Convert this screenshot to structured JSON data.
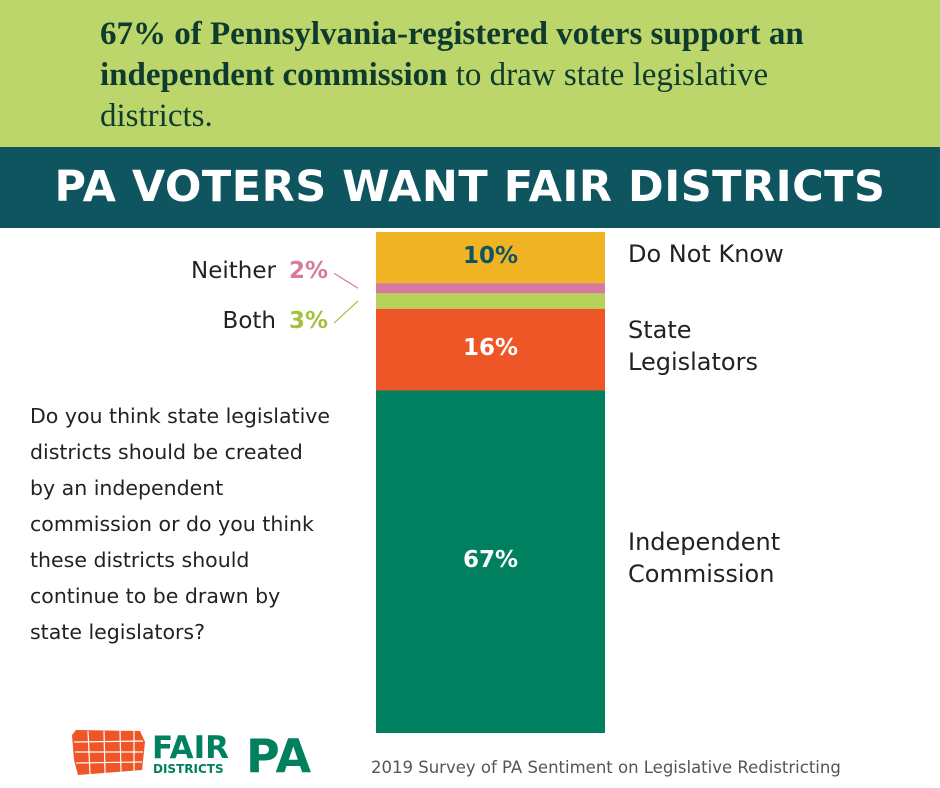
{
  "chart_data": {
    "type": "stacked_bar",
    "headline_bold": "67% of Pennsylvania-registered voters support an independent commission",
    "headline_rest": "to draw state legislative districts.",
    "title": "PA VOTERS WANT FAIR DISTRICTS",
    "question": "Do you think state legislative districts should be created by an independent commission or do you think these districts should continue to be drawn by state legislators?",
    "source": "2019 Survey of PA Sentiment on Legislative Redistricting",
    "series": [
      {
        "name": "Independent Commission",
        "color": "#00805f",
        "label_color": "#ffffff",
        "values": [
          67
        ],
        "value_labels": [
          "67%"
        ]
      },
      {
        "name": "State Legislators",
        "color": "#ee5527",
        "label_color": "#ffffff",
        "values": [
          16
        ],
        "value_labels": [
          "16%"
        ]
      },
      {
        "name": "Both",
        "color": "#b5d35a",
        "label_color": "#a3c13f",
        "values": [
          3
        ],
        "value_labels": [
          "3%"
        ]
      },
      {
        "name": "Neither",
        "color": "#d87aa0",
        "label_color": "#d87aa0",
        "values": [
          2
        ],
        "value_labels": [
          "2%"
        ]
      },
      {
        "name": "Do Not Know",
        "color": "#f0b323",
        "label_color": "#0e5560",
        "values": [
          10
        ],
        "value_labels": [
          "10%"
        ]
      }
    ]
  },
  "logo": {
    "fair": "FAIR",
    "districts": "DISTRICTS",
    "pa": "PA"
  }
}
